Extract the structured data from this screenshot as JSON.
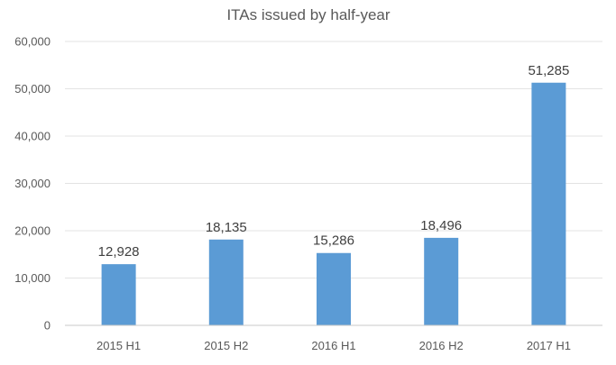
{
  "chart_data": {
    "type": "bar",
    "title": "ITAs issued by half-year",
    "xlabel": "",
    "ylabel": "",
    "categories": [
      "2015 H1",
      "2015 H2",
      "2016 H1",
      "2016 H2",
      "2017 H1"
    ],
    "values": [
      12928,
      18135,
      15286,
      18496,
      51285
    ],
    "data_labels": [
      "12,928",
      "18,135",
      "15,286",
      "18,496",
      "51,285"
    ],
    "ylim": [
      0,
      60000
    ],
    "yticks": [
      0,
      10000,
      20000,
      30000,
      40000,
      50000,
      60000
    ],
    "ytick_labels": [
      "0",
      "10,000",
      "20,000",
      "30,000",
      "40,000",
      "50,000",
      "60,000"
    ],
    "grid": true,
    "legend": "none",
    "bar_color": "#5b9bd5"
  }
}
